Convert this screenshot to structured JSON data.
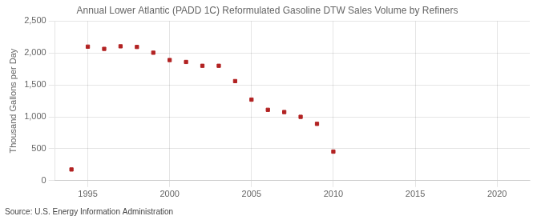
{
  "chart_data": {
    "type": "scatter",
    "title": "Annual Lower Atlantic (PADD 1C) Reformulated Gasoline DTW Sales Volume by Refiners",
    "ylabel": "Thousand Gallons per Day",
    "source": "Source: U.S. Energy Information Administration",
    "x": [
      1994,
      1995,
      1996,
      1997,
      1998,
      1999,
      2000,
      2001,
      2002,
      2003,
      2004,
      2005,
      2006,
      2007,
      2008,
      2009,
      2010
    ],
    "values": [
      175,
      2100,
      2065,
      2105,
      2095,
      2005,
      1890,
      1860,
      1800,
      1800,
      1560,
      1270,
      1110,
      1075,
      1000,
      890,
      455
    ],
    "color": "#b22222",
    "marker": "square",
    "xlim": [
      1993,
      2022
    ],
    "xticks": [
      1995,
      2000,
      2005,
      2010,
      2015,
      2020
    ],
    "ylim": [
      0,
      2500
    ],
    "yticks": [
      0,
      500,
      {
        "value": 1000,
        "label": "1,000"
      },
      {
        "value": 1500,
        "label": "1,500"
      },
      {
        "value": 2000,
        "label": "2,000"
      },
      {
        "value": 2500,
        "label": "2,500"
      }
    ],
    "grid": true
  }
}
